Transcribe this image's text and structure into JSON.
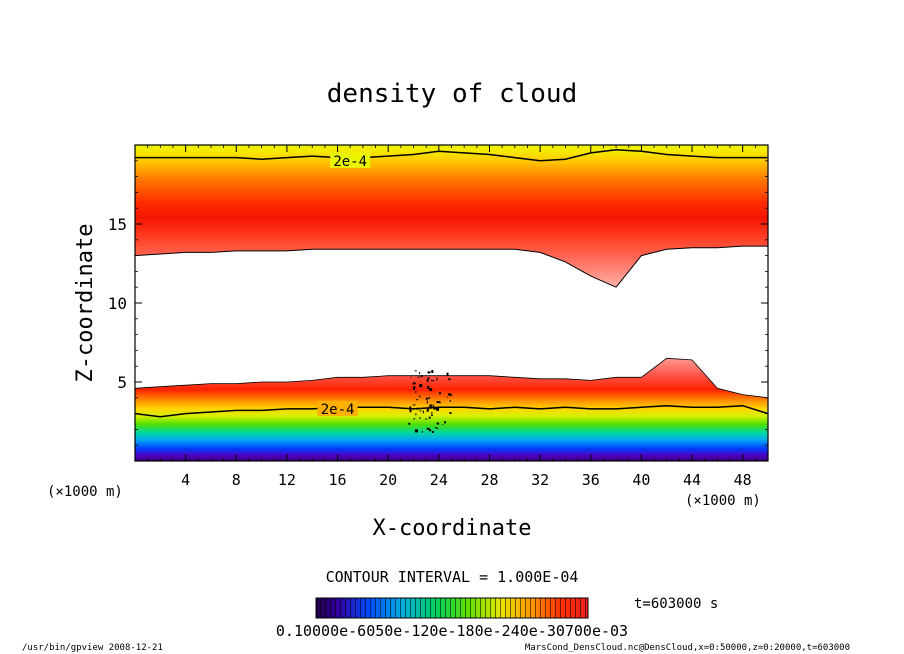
{
  "chart_data": {
    "type": "contour",
    "title": "density of cloud",
    "xlabel": "X-coordinate",
    "ylabel": "Z-coordinate",
    "x_unit": "(×1000 m)",
    "xlim": [
      0,
      50
    ],
    "ylim": [
      0,
      20
    ],
    "xticks": [
      4,
      8,
      12,
      16,
      20,
      24,
      28,
      32,
      36,
      40,
      44,
      48
    ],
    "yticks": [
      5,
      10,
      15
    ],
    "contour_labels": [
      {
        "text": "2e-4",
        "x": 17.0,
        "z": 19.0
      },
      {
        "text": "2e-4",
        "x": 16.0,
        "z": 3.3
      }
    ],
    "contour_interval": "CONTOUR INTERVAL = 1.000E-04",
    "time_label": "t=603000 s",
    "colorbar_ticks": "0.10000e-6050e-120e-180e-240e-30700e-03",
    "upper_layer": {
      "top_z": [
        19.2,
        19.2,
        19.2,
        19.2,
        19.2,
        19.1,
        19.2,
        19.3,
        19.2,
        19.2,
        19.3,
        19.4,
        19.6,
        19.5,
        19.4,
        19.2,
        19.0,
        19.1,
        19.5,
        19.7,
        19.6,
        19.4,
        19.3,
        19.2,
        19.2,
        19.2
      ],
      "bottom_z": [
        13.0,
        13.1,
        13.2,
        13.2,
        13.3,
        13.3,
        13.3,
        13.4,
        13.4,
        13.4,
        13.4,
        13.4,
        13.4,
        13.4,
        13.4,
        13.4,
        13.2,
        12.6,
        11.7,
        11.0,
        13.0,
        13.4,
        13.5,
        13.5,
        13.6,
        13.6
      ],
      "core_z": 15.5
    },
    "lower_layer": {
      "top_z": [
        4.6,
        4.7,
        4.8,
        4.9,
        4.9,
        5.0,
        5.0,
        5.1,
        5.3,
        5.3,
        5.4,
        5.4,
        5.4,
        5.4,
        5.4,
        5.3,
        5.2,
        5.2,
        5.1,
        5.3,
        5.3,
        6.5,
        6.4,
        4.6,
        4.2,
        4.0
      ],
      "contour_2e4_z": [
        3.0,
        2.8,
        3.0,
        3.1,
        3.2,
        3.2,
        3.3,
        3.3,
        3.4,
        3.4,
        3.4,
        3.3,
        3.4,
        3.4,
        3.3,
        3.4,
        3.3,
        3.4,
        3.3,
        3.3,
        3.4,
        3.5,
        3.4,
        3.4,
        3.5,
        3.0
      ],
      "bottom_z": 0.6
    },
    "footer_left": "/usr/bin/gpview   2008-12-21",
    "footer_right": "MarsCond_DensCloud.nc@DensCloud,x=0:50000,z=0:20000,t=603000"
  }
}
